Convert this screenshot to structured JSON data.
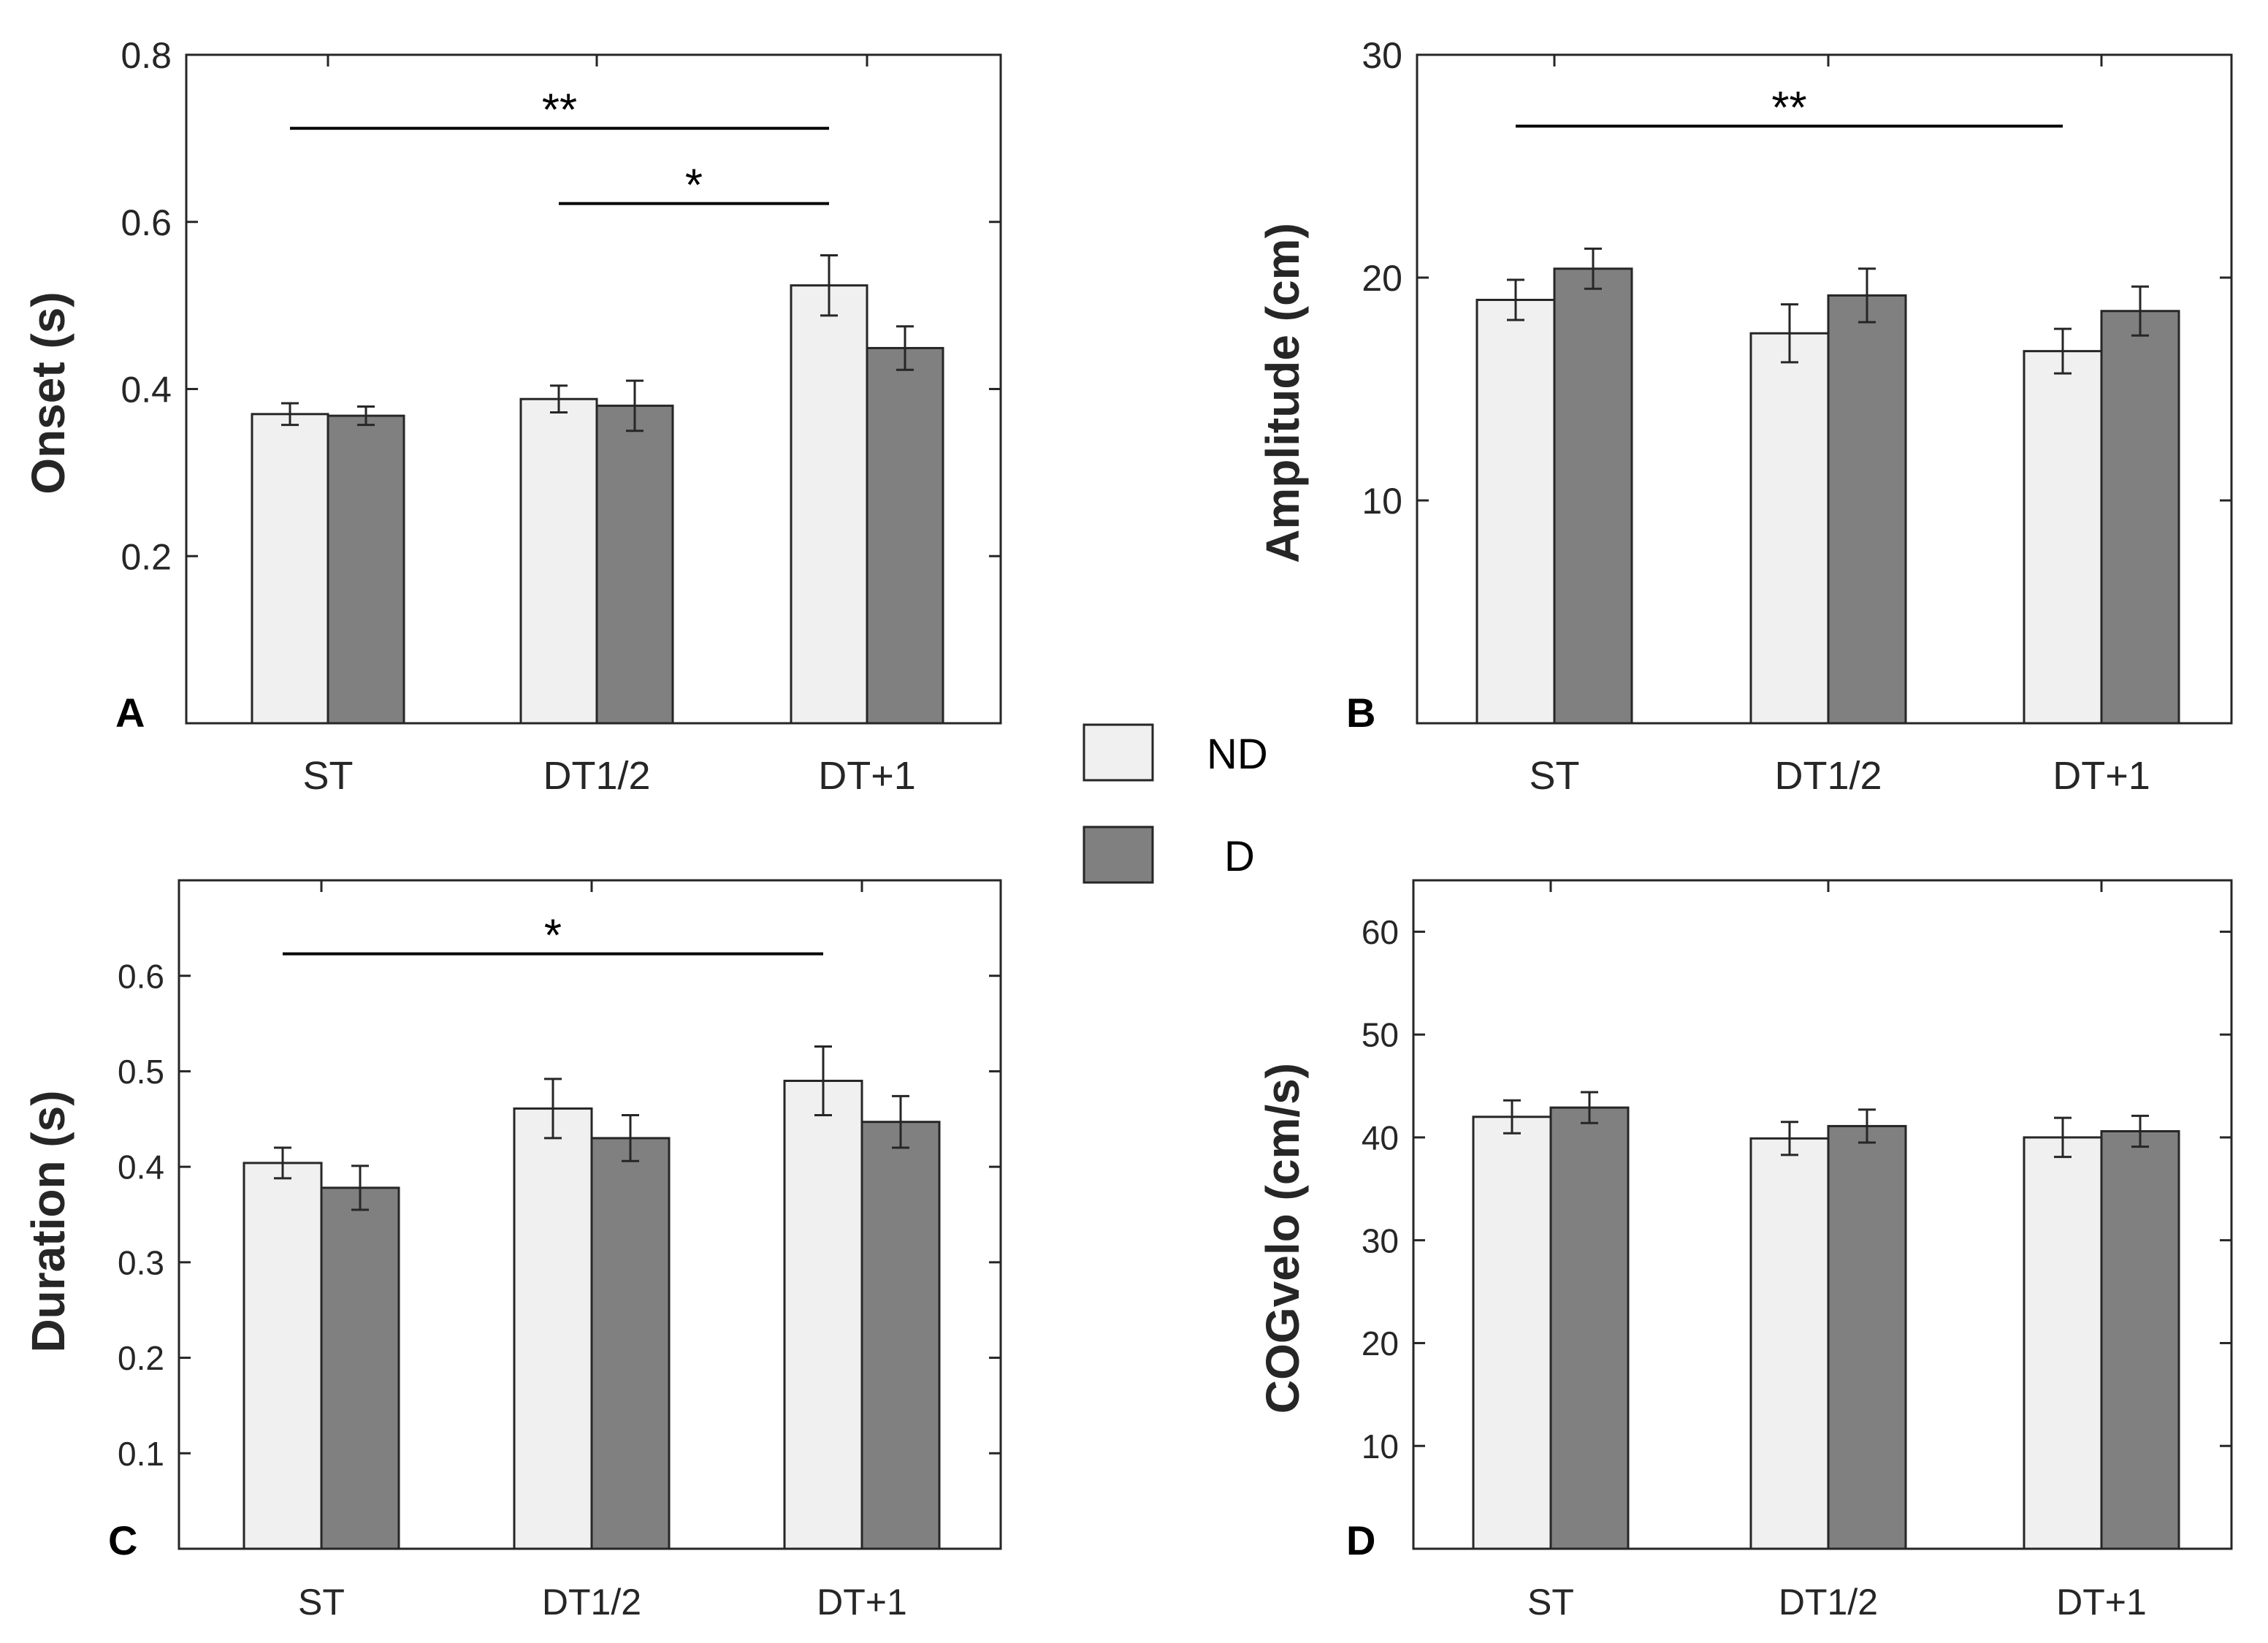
{
  "colors": {
    "nd": "#f0f0f0",
    "d": "#808080",
    "stroke": "#262626",
    "axis": "#262626"
  },
  "legend": [
    {
      "label": "ND",
      "color": "#f0f0f0"
    },
    {
      "label": "D",
      "color": "#808080"
    }
  ],
  "chart_data": [
    {
      "type": "bar",
      "panel_letter": "A",
      "ylabel": "Onset (s)",
      "categories": [
        "ST",
        "DT1/2",
        "DT+1"
      ],
      "ylim": [
        0,
        0.8
      ],
      "yticks": [
        0.2,
        0.4,
        0.6,
        0.8
      ],
      "ytick_labels": [
        "0.2",
        "0.4",
        "0.6",
        "0.8"
      ],
      "series": [
        {
          "name": "ND",
          "values": [
            0.37,
            0.388,
            0.524
          ],
          "errors": [
            0.013,
            0.016,
            0.036
          ]
        },
        {
          "name": "D",
          "values": [
            0.368,
            0.38,
            0.449
          ],
          "errors": [
            0.011,
            0.03,
            0.026
          ]
        }
      ],
      "significance": [
        {
          "from": 0,
          "to": 2,
          "level": 0.712,
          "label": "**"
        },
        {
          "from": 1,
          "to": 2,
          "level": 0.622,
          "label": "*"
        }
      ]
    },
    {
      "type": "bar",
      "panel_letter": "B",
      "ylabel": "Amplitude (cm)",
      "categories": [
        "ST",
        "DT1/2",
        "DT+1"
      ],
      "ylim": [
        0,
        30
      ],
      "yticks": [
        10,
        20,
        30
      ],
      "ytick_labels": [
        "10",
        "20",
        "30"
      ],
      "series": [
        {
          "name": "ND",
          "values": [
            19.0,
            17.5,
            16.7
          ],
          "errors": [
            0.9,
            1.3,
            1.0
          ]
        },
        {
          "name": "D",
          "values": [
            20.4,
            19.2,
            18.5
          ],
          "errors": [
            0.9,
            1.2,
            1.1
          ]
        }
      ],
      "significance": [
        {
          "from": 0,
          "to": 2,
          "level": 26.8,
          "label": "**"
        }
      ]
    },
    {
      "type": "bar",
      "panel_letter": "C",
      "ylabel": "Duration (s)",
      "categories": [
        "ST",
        "DT1/2",
        "DT+1"
      ],
      "ylim": [
        0,
        0.7
      ],
      "yticks": [
        0.1,
        0.2,
        0.3,
        0.4,
        0.5,
        0.6
      ],
      "ytick_labels": [
        "0.1",
        "0.2",
        "0.3",
        "0.4",
        "0.5",
        "0.6"
      ],
      "series": [
        {
          "name": "ND",
          "values": [
            0.404,
            0.461,
            0.49
          ],
          "errors": [
            0.016,
            0.031,
            0.036
          ]
        },
        {
          "name": "D",
          "values": [
            0.378,
            0.43,
            0.447
          ],
          "errors": [
            0.023,
            0.024,
            0.027
          ]
        }
      ],
      "significance": [
        {
          "from": 0,
          "to": 2,
          "level": 0.623,
          "label": "*"
        }
      ]
    },
    {
      "type": "bar",
      "panel_letter": "D",
      "ylabel": "COGvelo (cm/s)",
      "categories": [
        "ST",
        "DT1/2",
        "DT+1"
      ],
      "ylim": [
        0,
        65
      ],
      "yticks": [
        10,
        20,
        30,
        40,
        50,
        60
      ],
      "ytick_labels": [
        "10",
        "20",
        "30",
        "40",
        "50",
        "60"
      ],
      "series": [
        {
          "name": "ND",
          "values": [
            42.0,
            39.9,
            40.0
          ],
          "errors": [
            1.6,
            1.6,
            1.9
          ]
        },
        {
          "name": "D",
          "values": [
            42.9,
            41.1,
            40.6
          ],
          "errors": [
            1.5,
            1.6,
            1.5
          ]
        }
      ],
      "significance": []
    }
  ]
}
